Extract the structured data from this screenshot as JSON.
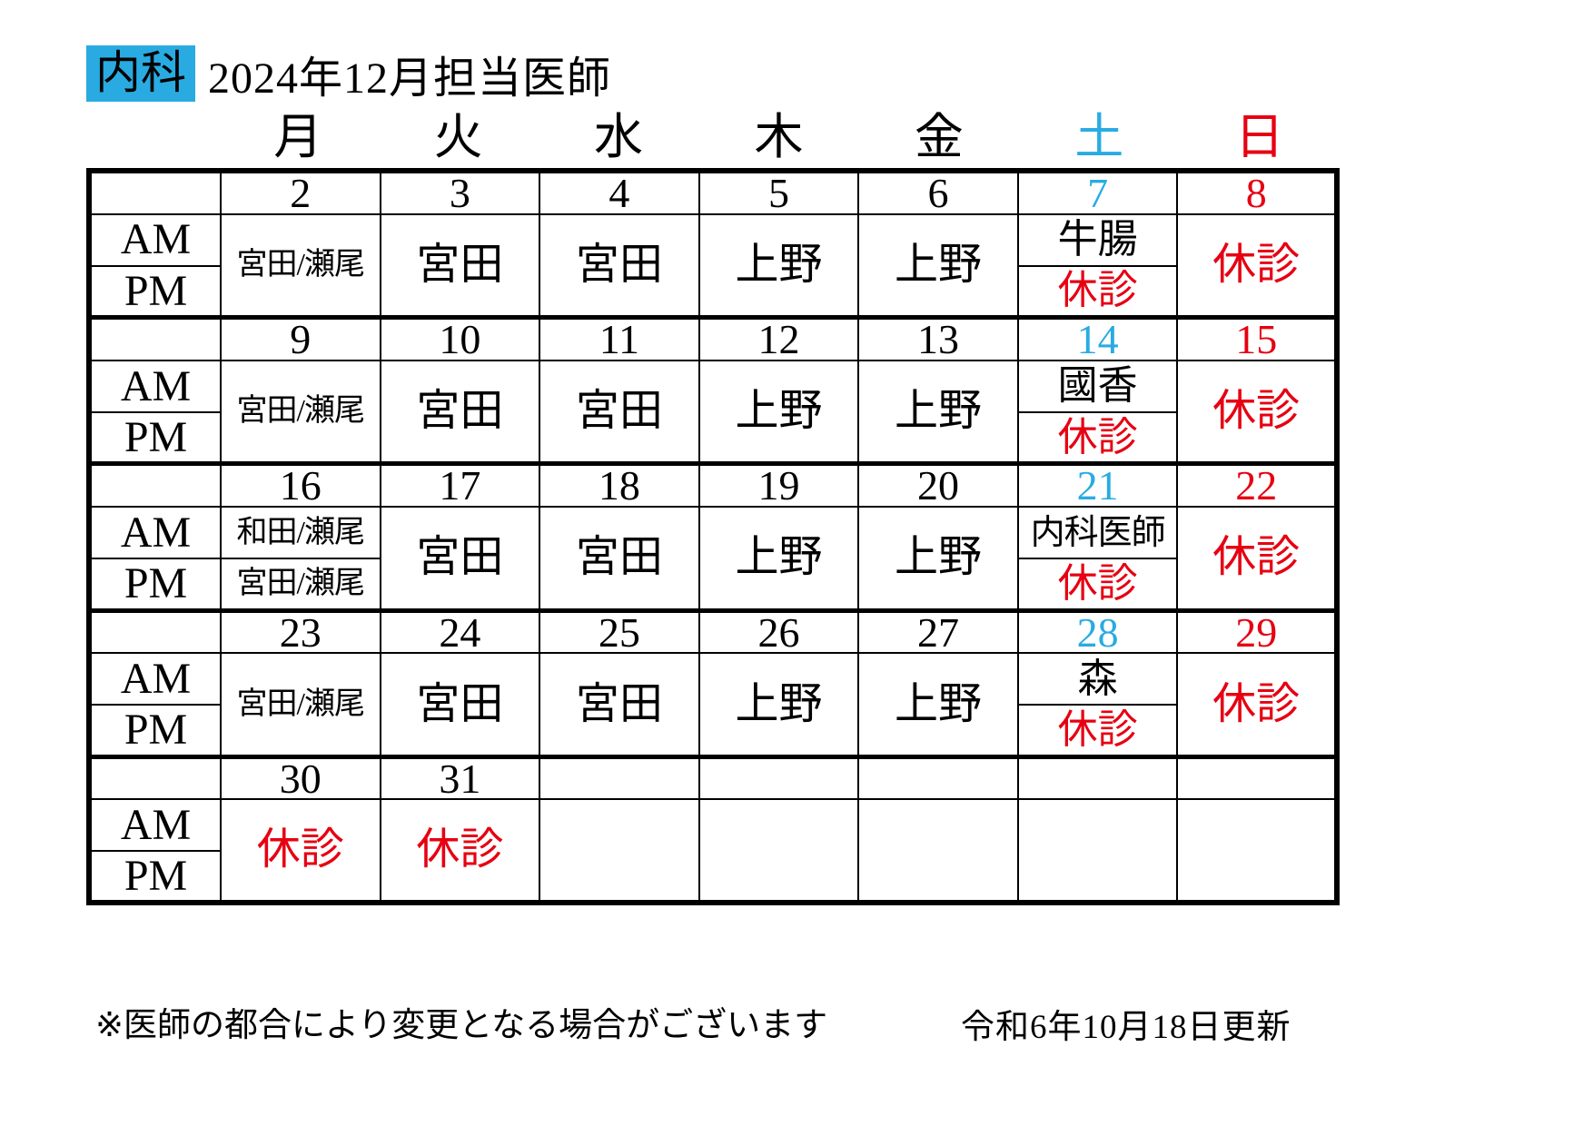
{
  "colors": {
    "black": "#000000",
    "saturday_cyan": "#29abe2",
    "sunday_red": "#e60012",
    "closed_red": "#e60012",
    "department_bg": "#29abe2"
  },
  "header": {
    "department": "内科",
    "title": "2024年12月担当医師"
  },
  "weekday_header": [
    {
      "label": "月",
      "color": "#000000"
    },
    {
      "label": "火",
      "color": "#000000"
    },
    {
      "label": "水",
      "color": "#000000"
    },
    {
      "label": "木",
      "color": "#000000"
    },
    {
      "label": "金",
      "color": "#000000"
    },
    {
      "label": "土",
      "color": "#29abe2"
    },
    {
      "label": "日",
      "color": "#e60012"
    }
  ],
  "row_labels": {
    "am": "AM",
    "pm": "PM"
  },
  "weeks": [
    {
      "dates": [
        {
          "text": "2",
          "color": "#000000"
        },
        {
          "text": "3",
          "color": "#000000"
        },
        {
          "text": "4",
          "color": "#000000"
        },
        {
          "text": "5",
          "color": "#000000"
        },
        {
          "text": "6",
          "color": "#000000"
        },
        {
          "text": "7",
          "color": "#29abe2"
        },
        {
          "text": "8",
          "color": "#e60012"
        }
      ],
      "cells": {
        "mon": {
          "text": "宮田/瀬尾",
          "color": "#000000"
        },
        "tue": {
          "text": "宮田",
          "color": "#000000"
        },
        "wed": {
          "text": "宮田",
          "color": "#000000"
        },
        "thu": {
          "text": "上野",
          "color": "#000000"
        },
        "fri": {
          "text": "上野",
          "color": "#000000"
        },
        "sat_am": {
          "text": "牛腸",
          "color": "#000000"
        },
        "sat_pm": {
          "text": "休診",
          "color": "#e60012"
        },
        "sun": {
          "text": "休診",
          "color": "#e60012"
        }
      }
    },
    {
      "dates": [
        {
          "text": "9",
          "color": "#000000"
        },
        {
          "text": "10",
          "color": "#000000"
        },
        {
          "text": "11",
          "color": "#000000"
        },
        {
          "text": "12",
          "color": "#000000"
        },
        {
          "text": "13",
          "color": "#000000"
        },
        {
          "text": "14",
          "color": "#29abe2"
        },
        {
          "text": "15",
          "color": "#e60012"
        }
      ],
      "cells": {
        "mon": {
          "text": "宮田/瀬尾",
          "color": "#000000"
        },
        "tue": {
          "text": "宮田",
          "color": "#000000"
        },
        "wed": {
          "text": "宮田",
          "color": "#000000"
        },
        "thu": {
          "text": "上野",
          "color": "#000000"
        },
        "fri": {
          "text": "上野",
          "color": "#000000"
        },
        "sat_am": {
          "text": "國香",
          "color": "#000000"
        },
        "sat_pm": {
          "text": "休診",
          "color": "#e60012"
        },
        "sun": {
          "text": "休診",
          "color": "#e60012"
        }
      }
    },
    {
      "dates": [
        {
          "text": "16",
          "color": "#000000"
        },
        {
          "text": "17",
          "color": "#000000"
        },
        {
          "text": "18",
          "color": "#000000"
        },
        {
          "text": "19",
          "color": "#000000"
        },
        {
          "text": "20",
          "color": "#000000"
        },
        {
          "text": "21",
          "color": "#29abe2"
        },
        {
          "text": "22",
          "color": "#e60012"
        }
      ],
      "cells": {
        "mon_am": {
          "text": "和田/瀬尾",
          "color": "#000000"
        },
        "mon_pm": {
          "text": "宮田/瀬尾",
          "color": "#000000"
        },
        "tue": {
          "text": "宮田",
          "color": "#000000"
        },
        "wed": {
          "text": "宮田",
          "color": "#000000"
        },
        "thu": {
          "text": "上野",
          "color": "#000000"
        },
        "fri": {
          "text": "上野",
          "color": "#000000"
        },
        "sat_am": {
          "text": "内科医師",
          "color": "#000000"
        },
        "sat_pm": {
          "text": "休診",
          "color": "#e60012"
        },
        "sun": {
          "text": "休診",
          "color": "#e60012"
        }
      }
    },
    {
      "dates": [
        {
          "text": "23",
          "color": "#000000"
        },
        {
          "text": "24",
          "color": "#000000"
        },
        {
          "text": "25",
          "color": "#000000"
        },
        {
          "text": "26",
          "color": "#000000"
        },
        {
          "text": "27",
          "color": "#000000"
        },
        {
          "text": "28",
          "color": "#29abe2"
        },
        {
          "text": "29",
          "color": "#e60012"
        }
      ],
      "cells": {
        "mon": {
          "text": "宮田/瀬尾",
          "color": "#000000"
        },
        "tue": {
          "text": "宮田",
          "color": "#000000"
        },
        "wed": {
          "text": "宮田",
          "color": "#000000"
        },
        "thu": {
          "text": "上野",
          "color": "#000000"
        },
        "fri": {
          "text": "上野",
          "color": "#000000"
        },
        "sat_am": {
          "text": "森",
          "color": "#000000"
        },
        "sat_pm": {
          "text": "休診",
          "color": "#e60012"
        },
        "sun": {
          "text": "休診",
          "color": "#e60012"
        }
      }
    },
    {
      "dates": [
        {
          "text": "30",
          "color": "#000000"
        },
        {
          "text": "31",
          "color": "#000000"
        },
        {
          "text": "",
          "color": "#000000"
        },
        {
          "text": "",
          "color": "#000000"
        },
        {
          "text": "",
          "color": "#000000"
        },
        {
          "text": "",
          "color": "#000000"
        },
        {
          "text": "",
          "color": "#000000"
        }
      ],
      "cells": {
        "mon": {
          "text": "休診",
          "color": "#e60012"
        },
        "tue": {
          "text": "休診",
          "color": "#e60012"
        },
        "wed": {
          "text": "",
          "color": "#000000"
        },
        "thu": {
          "text": "",
          "color": "#000000"
        },
        "fri": {
          "text": "",
          "color": "#000000"
        },
        "sat": {
          "text": "",
          "color": "#000000"
        },
        "sun": {
          "text": "",
          "color": "#000000"
        }
      }
    }
  ],
  "footer": {
    "note": "※医師の都合により変更となる場合がございます",
    "updated": "令和6年10月18日更新"
  }
}
